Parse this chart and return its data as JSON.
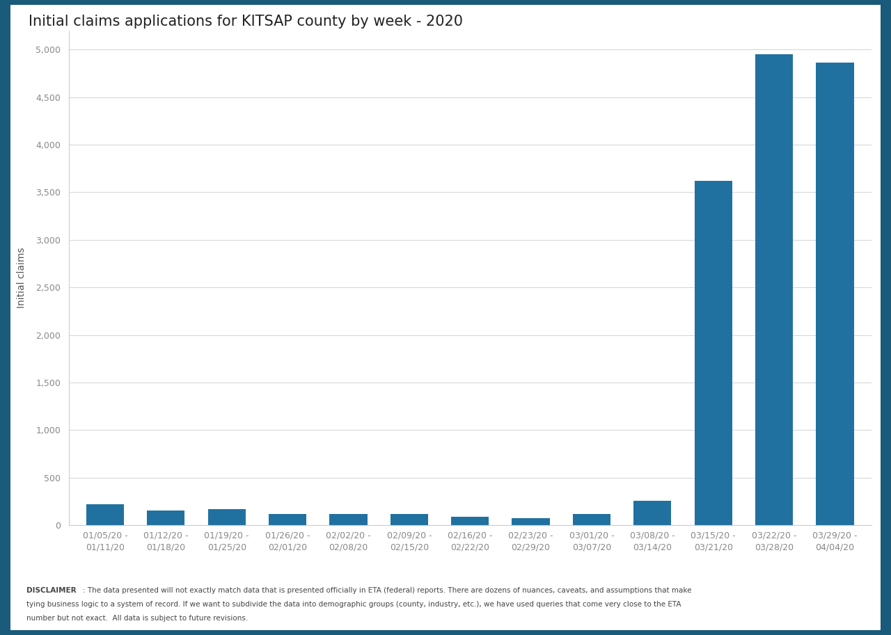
{
  "title": "Initial claims applications for KITSAP county by week - 2020",
  "ylabel": "Initial claims",
  "categories": [
    "01/05/20 -\n01/11/20",
    "01/12/20 -\n01/18/20",
    "01/19/20 -\n01/25/20",
    "01/26/20 -\n02/01/20",
    "02/02/20 -\n02/08/20",
    "02/09/20 -\n02/15/20",
    "02/16/20 -\n02/22/20",
    "02/23/20 -\n02/29/20",
    "03/01/20 -\n03/07/20",
    "03/08/20 -\n03/14/20",
    "03/15/20 -\n03/21/20",
    "03/22/20 -\n03/28/20",
    "03/29/20 -\n04/04/20"
  ],
  "values": [
    220,
    155,
    170,
    120,
    115,
    115,
    85,
    70,
    120,
    255,
    3620,
    4950,
    4860
  ],
  "bar_color": "#2171a0",
  "white_bg": "#ffffff",
  "outer_bg": "#1a5a7a",
  "ylim": [
    0,
    5200
  ],
  "yticks": [
    0,
    500,
    1000,
    1500,
    2000,
    2500,
    3000,
    3500,
    4000,
    4500,
    5000
  ],
  "grid_color": "#d8d8d8",
  "title_fontsize": 15,
  "axis_label_fontsize": 10,
  "tick_fontsize": 9,
  "disclaimer_bold": "DISCLAIMER",
  "disclaimer_text": ": The data presented will not exactly match data that is presented officially in ETA (federal) reports. There are dozens of nuances, caveats, and assumptions that make tying business logic to a system of record. If we want to subdivide the data into demographic groups (county, industry, etc.), we have used queries that come very close to the ETA number but not exact.  All data is subject to future revisions.",
  "border_color": "#1a5a7a",
  "tick_color": "#888888",
  "spine_color": "#cccccc"
}
